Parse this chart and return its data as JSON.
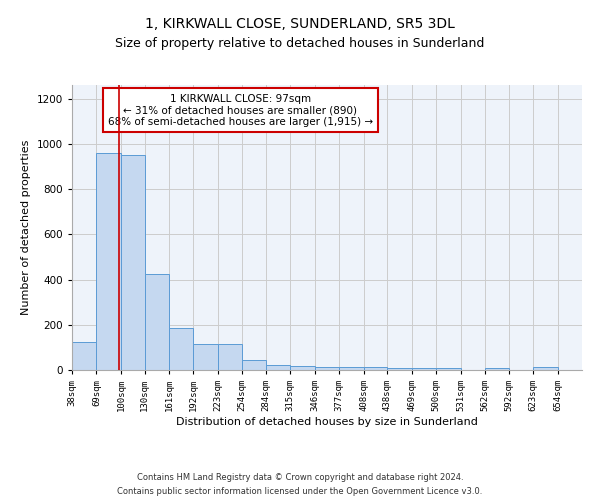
{
  "title": "1, KIRKWALL CLOSE, SUNDERLAND, SR5 3DL",
  "subtitle": "Size of property relative to detached houses in Sunderland",
  "xlabel": "Distribution of detached houses by size in Sunderland",
  "ylabel": "Number of detached properties",
  "footnote1": "Contains HM Land Registry data © Crown copyright and database right 2024.",
  "footnote2": "Contains public sector information licensed under the Open Government Licence v3.0.",
  "annotation_title": "1 KIRKWALL CLOSE: 97sqm",
  "annotation_line2": "← 31% of detached houses are smaller (890)",
  "annotation_line3": "68% of semi-detached houses are larger (1,915) →",
  "bar_left_edges": [
    38,
    69,
    100,
    130,
    161,
    192,
    223,
    254,
    284,
    315,
    346,
    377,
    408,
    438,
    469,
    500,
    531,
    562,
    592,
    623
  ],
  "bar_widths": [
    31,
    31,
    30,
    31,
    31,
    31,
    31,
    30,
    31,
    31,
    31,
    31,
    30,
    31,
    31,
    31,
    31,
    30,
    31,
    31
  ],
  "bar_heights": [
    125,
    960,
    950,
    425,
    185,
    115,
    115,
    43,
    20,
    18,
    15,
    15,
    15,
    8,
    8,
    8,
    0,
    8,
    0,
    12
  ],
  "tick_labels": [
    "38sqm",
    "69sqm",
    "100sqm",
    "130sqm",
    "161sqm",
    "192sqm",
    "223sqm",
    "254sqm",
    "284sqm",
    "315sqm",
    "346sqm",
    "377sqm",
    "408sqm",
    "438sqm",
    "469sqm",
    "500sqm",
    "531sqm",
    "562sqm",
    "592sqm",
    "623sqm",
    "654sqm"
  ],
  "bar_color": "#c5d8f0",
  "bar_edge_color": "#5b9bd5",
  "red_line_x": 97,
  "ylim": [
    0,
    1260
  ],
  "yticks": [
    0,
    200,
    400,
    600,
    800,
    1000,
    1200
  ],
  "grid_color": "#cccccc",
  "bg_color": "#eef3fa",
  "annotation_box_color": "#ffffff",
  "annotation_box_edge": "#cc0000",
  "red_line_color": "#cc0000",
  "title_fontsize": 10,
  "subtitle_fontsize": 9,
  "axis_label_fontsize": 8,
  "tick_fontsize": 6.5,
  "annotation_fontsize": 7.5,
  "footnote_fontsize": 6
}
